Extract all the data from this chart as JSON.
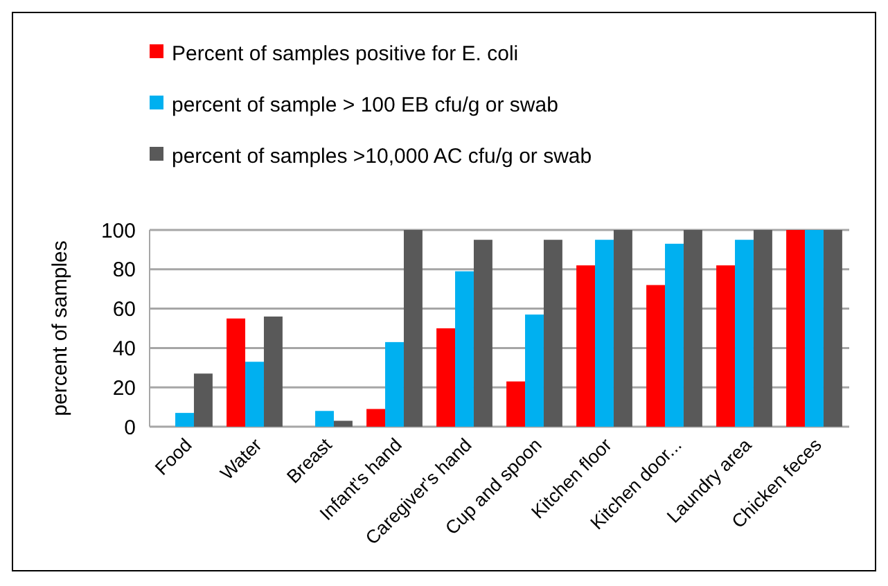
{
  "chart_data": {
    "type": "bar",
    "ylabel": "percent of samples",
    "categories": [
      "Food",
      "Water",
      "Breast",
      "Infant's hand",
      "Caregiver's hand",
      "Cup and spoon",
      "Kitchen floor",
      "Kitchen door...",
      "Laundry area",
      "Chicken feces"
    ],
    "series": [
      {
        "name": "Percent of samples positive for E. coli",
        "color": "#ff0000",
        "values": [
          0,
          55,
          0,
          9,
          50,
          23,
          82,
          72,
          82,
          100
        ]
      },
      {
        "name": "percent of sample > 100 EB cfu/g or swab",
        "color": "#00b0f0",
        "values": [
          7,
          33,
          8,
          43,
          79,
          57,
          95,
          93,
          95,
          100
        ]
      },
      {
        "name": "percent of samples >10,000 AC cfu/g or swab",
        "color": "#595959",
        "values": [
          27,
          56,
          3,
          100,
          95,
          95,
          100,
          100,
          100,
          100
        ]
      }
    ],
    "ylim": [
      0,
      100
    ],
    "yticks": [
      0,
      20,
      40,
      60,
      80,
      100
    ],
    "grid": "y",
    "legend": "top left"
  }
}
